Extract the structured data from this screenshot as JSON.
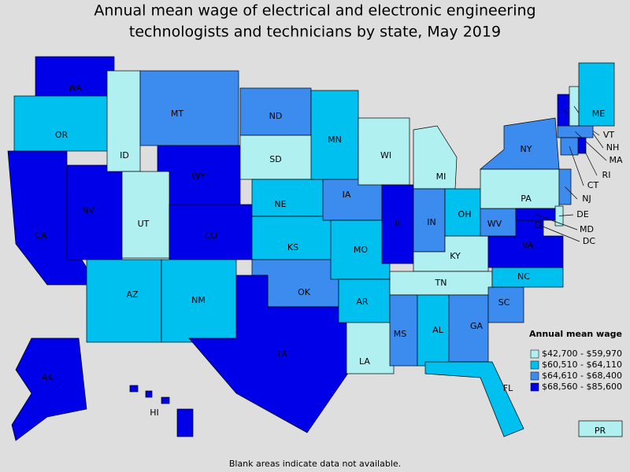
{
  "title": [
    "Annual mean wage of electrical and electronic engineering",
    "technologists and technicians by state, May 2019"
  ],
  "legend": {
    "title": "Annual mean wage",
    "classes": [
      {
        "label": "$42,700 - $59,970",
        "color": "#b0f0f0"
      },
      {
        "label": "$60,510 - $64,110",
        "color": "#00c0f0"
      },
      {
        "label": "$64,610 - $68,400",
        "color": "#3c8cf0"
      },
      {
        "label": "$68,560 - $85,600",
        "color": "#0000e8"
      }
    ]
  },
  "states": [
    {
      "abbr": "WA",
      "class": 3
    },
    {
      "abbr": "OR",
      "class": 1
    },
    {
      "abbr": "CA",
      "class": 3
    },
    {
      "abbr": "NV",
      "class": 3
    },
    {
      "abbr": "ID",
      "class": 0
    },
    {
      "abbr": "MT",
      "class": 2
    },
    {
      "abbr": "WY",
      "class": 3
    },
    {
      "abbr": "UT",
      "class": 0
    },
    {
      "abbr": "CO",
      "class": 3
    },
    {
      "abbr": "AZ",
      "class": 1
    },
    {
      "abbr": "NM",
      "class": 1
    },
    {
      "abbr": "ND",
      "class": 2
    },
    {
      "abbr": "SD",
      "class": 0
    },
    {
      "abbr": "NE",
      "class": 1
    },
    {
      "abbr": "KS",
      "class": 1
    },
    {
      "abbr": "OK",
      "class": 2
    },
    {
      "abbr": "TX",
      "class": 3
    },
    {
      "abbr": "MN",
      "class": 1
    },
    {
      "abbr": "IA",
      "class": 2
    },
    {
      "abbr": "MO",
      "class": 1
    },
    {
      "abbr": "AR",
      "class": 1
    },
    {
      "abbr": "LA",
      "class": 0
    },
    {
      "abbr": "WI",
      "class": 0
    },
    {
      "abbr": "IL",
      "class": 3
    },
    {
      "abbr": "MI",
      "class": 0
    },
    {
      "abbr": "IN",
      "class": 2
    },
    {
      "abbr": "OH",
      "class": 1
    },
    {
      "abbr": "KY",
      "class": 0
    },
    {
      "abbr": "TN",
      "class": 0
    },
    {
      "abbr": "MS",
      "class": 2
    },
    {
      "abbr": "AL",
      "class": 1
    },
    {
      "abbr": "GA",
      "class": 2
    },
    {
      "abbr": "FL",
      "class": 1
    },
    {
      "abbr": "SC",
      "class": 2
    },
    {
      "abbr": "NC",
      "class": 1
    },
    {
      "abbr": "VA",
      "class": 3
    },
    {
      "abbr": "WV",
      "class": 2
    },
    {
      "abbr": "PA",
      "class": 0
    },
    {
      "abbr": "NY",
      "class": 2
    },
    {
      "abbr": "VT",
      "class": 3
    },
    {
      "abbr": "NH",
      "class": 0
    },
    {
      "abbr": "ME",
      "class": 1
    },
    {
      "abbr": "MA",
      "class": 2
    },
    {
      "abbr": "RI",
      "class": 3
    },
    {
      "abbr": "CT",
      "class": 2
    },
    {
      "abbr": "NJ",
      "class": 2
    },
    {
      "abbr": "DE",
      "class": 0
    },
    {
      "abbr": "MD",
      "class": 3
    },
    {
      "abbr": "DC",
      "class": 3
    },
    {
      "abbr": "AK",
      "class": 3
    },
    {
      "abbr": "HI",
      "class": 3
    },
    {
      "abbr": "PR",
      "class": 0
    }
  ],
  "footnote": "Blank areas indicate data not available."
}
